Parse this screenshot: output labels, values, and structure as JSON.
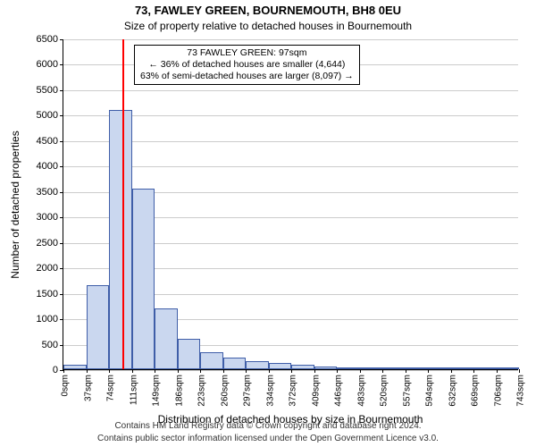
{
  "title": "73, FAWLEY GREEN, BOURNEMOUTH, BH8 0EU",
  "subtitle": "Size of property relative to detached houses in Bournemouth",
  "footer1": "Contains HM Land Registry data © Crown copyright and database right 2024.",
  "footer2": "Contains public sector information licensed under the Open Government Licence v3.0.",
  "chart": {
    "type": "histogram",
    "xlabel": "Distribution of detached houses by size in Bournemouth",
    "ylabel": "Number of detached properties",
    "ylim": [
      0,
      6500
    ],
    "yticks": [
      0,
      500,
      1000,
      1500,
      2000,
      2500,
      3000,
      3500,
      4000,
      4500,
      5000,
      5500,
      6000,
      6500
    ],
    "xtick_labels": [
      "0sqm",
      "37sqm",
      "74sqm",
      "111sqm",
      "149sqm",
      "186sqm",
      "223sqm",
      "260sqm",
      "297sqm",
      "334sqm",
      "372sqm",
      "409sqm",
      "446sqm",
      "483sqm",
      "520sqm",
      "557sqm",
      "594sqm",
      "632sqm",
      "669sqm",
      "706sqm",
      "743sqm"
    ],
    "bins": 20,
    "bar_values": [
      80,
      1650,
      5100,
      3550,
      1200,
      600,
      340,
      220,
      160,
      120,
      90,
      60,
      40,
      10,
      10,
      5,
      5,
      5,
      5,
      5
    ],
    "bar_fill": "#cad7ef",
    "bar_stroke": "#3f5ea8",
    "grid_color": "#cccccc",
    "background": "#ffffff",
    "marker": {
      "bin_index": 2,
      "fraction_in_bin": 0.62,
      "color": "#ff0000"
    },
    "annotation": {
      "line1": "73 FAWLEY GREEN: 97sqm",
      "line2": "← 36% of detached houses are smaller (4,644)",
      "line3": "63% of semi-detached houses are larger (8,097) →",
      "box_bg": "#ffffff",
      "box_border": "#000000"
    }
  }
}
